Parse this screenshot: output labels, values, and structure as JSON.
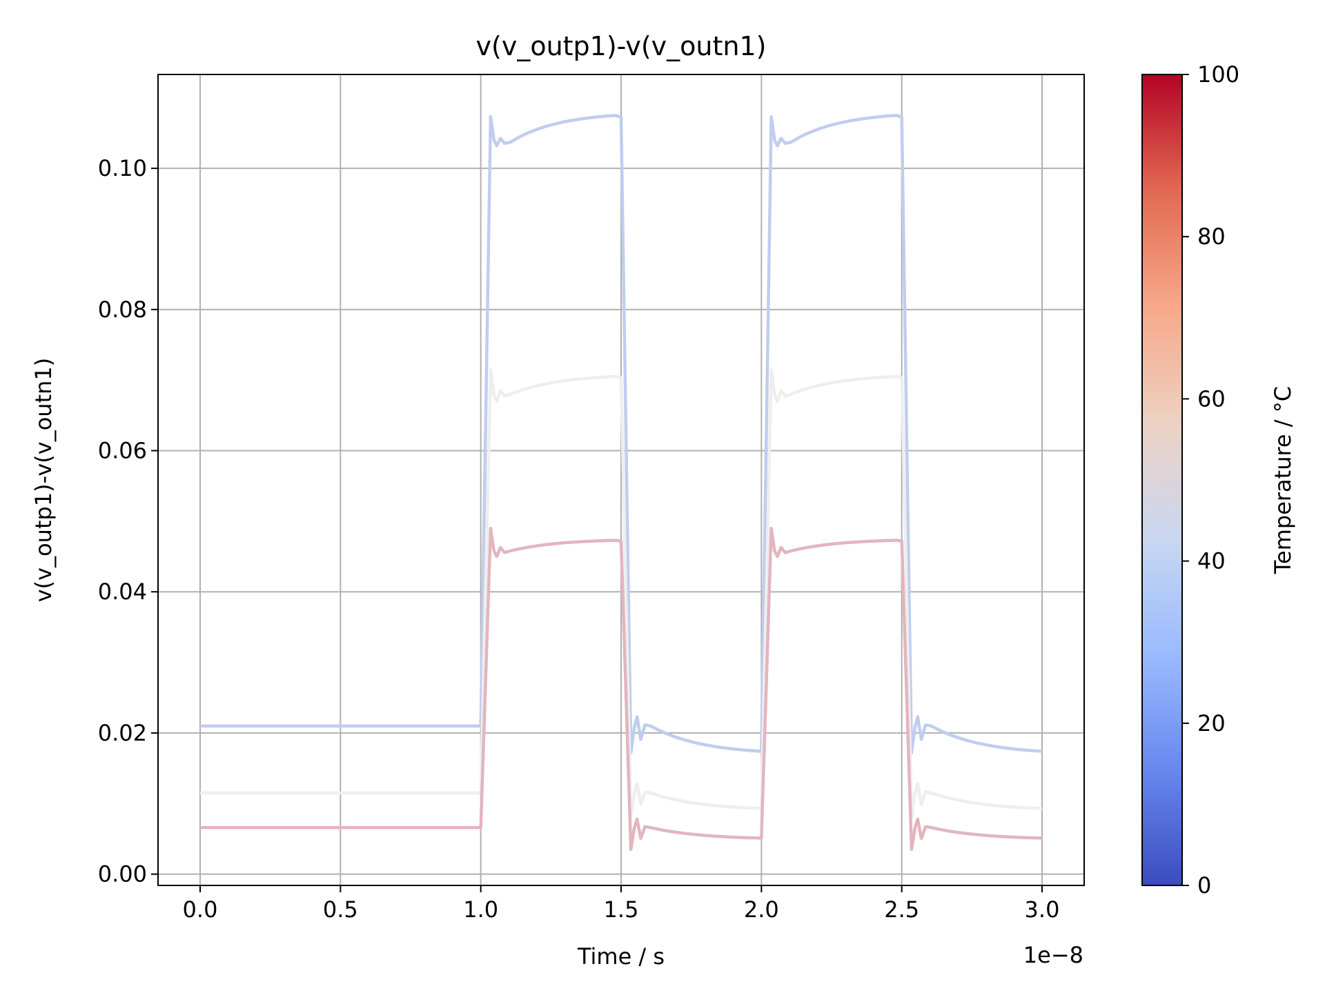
{
  "chart_data": {
    "type": "line",
    "title": "v(v_outp1)-v(v_outn1)",
    "xlabel": "Time / s",
    "ylabel": "v(v_outp1)-v(v_outn1)",
    "x_offset_text": "1e−8",
    "xlim": [
      -0.15,
      3.15
    ],
    "ylim": [
      -0.0016,
      0.1133
    ],
    "x_ticks": [
      0.0,
      0.5,
      1.0,
      1.5,
      2.0,
      2.5,
      3.0
    ],
    "x_tick_labels": [
      "0.0",
      "0.5",
      "1.0",
      "1.5",
      "2.0",
      "2.5",
      "3.0"
    ],
    "y_ticks": [
      0.0,
      0.02,
      0.04,
      0.06,
      0.08,
      0.1
    ],
    "y_tick_labels": [
      "0.00",
      "0.02",
      "0.04",
      "0.06",
      "0.08",
      "0.10"
    ],
    "grid": true,
    "colorbar": {
      "label": "Temperature / °C",
      "colormap": "coolwarm",
      "range": [
        0,
        100
      ],
      "ticks": [
        0,
        20,
        40,
        60,
        80,
        100
      ],
      "tick_labels": [
        "0",
        "20",
        "40",
        "60",
        "80",
        "100"
      ],
      "stops": [
        "#3b4cc0",
        "#6788ee",
        "#9abbff",
        "#c9d7f0",
        "#edd1c2",
        "#f7a889",
        "#e26952",
        "#b40426"
      ]
    },
    "series": [
      {
        "temperature": 40,
        "color": "#c0cdee",
        "low_start": 0.021,
        "high_peak": 0.1073,
        "high_dip": 0.1032,
        "high_start": 0.1037,
        "high_end": 0.1075,
        "low_peak": 0.0223,
        "low_dip": 0.0172,
        "low_end": 0.0174
      },
      {
        "temperature": 50,
        "color": "#eeeeee",
        "low_start": 0.0115,
        "high_peak": 0.0715,
        "high_dip": 0.067,
        "high_start": 0.068,
        "high_end": 0.0705,
        "low_peak": 0.0128,
        "low_dip": 0.0082,
        "low_end": 0.0093
      },
      {
        "temperature": 60,
        "color": "#e3b5bf",
        "low_start": 0.0066,
        "high_peak": 0.049,
        "high_dip": 0.045,
        "high_start": 0.0458,
        "high_end": 0.0473,
        "low_peak": 0.0078,
        "low_dip": 0.0035,
        "low_end": 0.0051
      }
    ],
    "pulse_period_edges": [
      {
        "rise": 1.0,
        "fall": 1.5
      },
      {
        "rise": 2.0,
        "fall": 2.5
      }
    ],
    "x_end": 3.0
  }
}
